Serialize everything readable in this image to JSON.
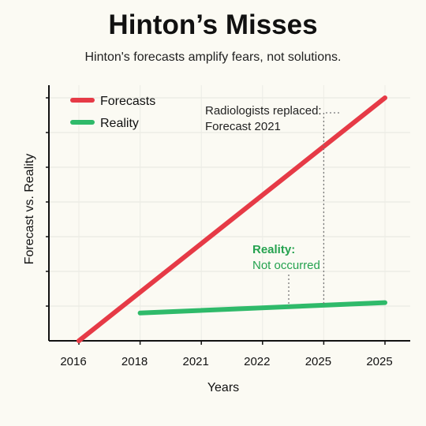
{
  "chart_data": {
    "type": "line",
    "title": "Hinton’s Misses",
    "subtitle": "Hinton's forecasts amplify fears, not solutions.",
    "xlabel": "Years",
    "ylabel": "Forecast vs. Reality",
    "x_tick_labels": [
      "2016",
      "2018",
      "2021",
      "2022",
      "2025",
      "2025"
    ],
    "grid": true,
    "legend_position": "top-left",
    "series": [
      {
        "name": "Forecasts",
        "color": "#e63a46",
        "points": [
          [
            0,
            0
          ],
          [
            5,
            7
          ]
        ]
      },
      {
        "name": "Reality",
        "color": "#2fba6a",
        "points": [
          [
            1,
            0.8
          ],
          [
            5,
            1.1
          ]
        ]
      }
    ],
    "xlim": [
      -0.6,
      5.4
    ],
    "ylim": [
      0,
      7.2
    ],
    "annotations": [
      {
        "lines": [
          "Radiologists replaced:",
          "Forecast 2021"
        ],
        "style": "dark",
        "target_x": 4.0
      },
      {
        "lines": [
          "Reality:",
          "Not occurred"
        ],
        "style": "green",
        "target_x": 3.0
      }
    ]
  }
}
